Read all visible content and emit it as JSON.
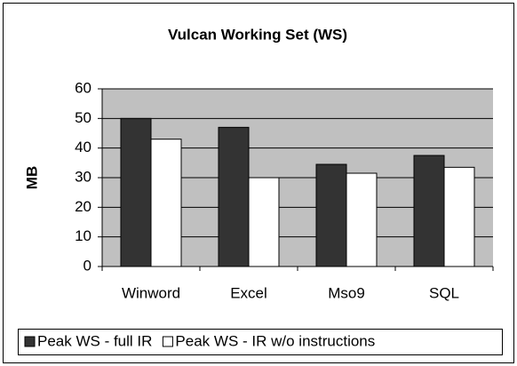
{
  "chart_data": {
    "type": "bar",
    "title": "Vulcan Working Set (WS)",
    "y_label": "MB",
    "categories": [
      "Winword",
      "Excel",
      "Mso9",
      "SQL"
    ],
    "series": [
      {
        "name": "Peak WS - full IR",
        "color": "#333333",
        "values": [
          50,
          47,
          34.5,
          37.5
        ]
      },
      {
        "name": "Peak WS - IR w/o instructions",
        "color": "#ffffff",
        "values": [
          43,
          30,
          31.5,
          33.5
        ]
      }
    ],
    "ylim": [
      0,
      60
    ],
    "yticks": [
      0,
      10,
      20,
      30,
      40,
      50,
      60
    ],
    "grid": true,
    "plot_background": "#c0c0c0",
    "legend": "bottom"
  }
}
